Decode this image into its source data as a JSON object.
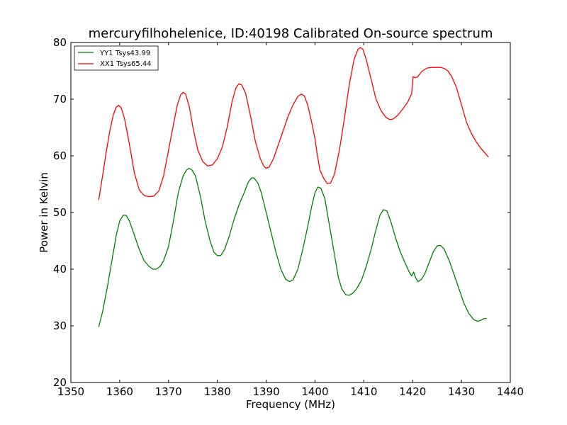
{
  "chart_data": {
    "type": "line",
    "title": "mercuryfilhohelenice, ID:40198 Calibrated On-source spectrum",
    "xlabel": "Frequency (MHz)",
    "ylabel": "Power in Kelvin",
    "xlim": [
      1350,
      1440
    ],
    "ylim": [
      20,
      80
    ],
    "xticks": [
      1350,
      1360,
      1370,
      1380,
      1390,
      1400,
      1410,
      1420,
      1430,
      1440
    ],
    "yticks": [
      20,
      30,
      40,
      50,
      60,
      70,
      80
    ],
    "grid": false,
    "legend_position": "top-left",
    "series": [
      {
        "name": "YY1 Tsys43.99",
        "color": "#008000",
        "points": [
          [
            1355.7,
            29.8
          ],
          [
            1356.5,
            32.5
          ],
          [
            1357.5,
            37.0
          ],
          [
            1358.5,
            42.0
          ],
          [
            1359.3,
            46.0
          ],
          [
            1360.0,
            48.5
          ],
          [
            1360.7,
            49.5
          ],
          [
            1361.3,
            49.5
          ],
          [
            1362.0,
            48.5
          ],
          [
            1363.0,
            46.0
          ],
          [
            1364.0,
            43.5
          ],
          [
            1365.0,
            41.5
          ],
          [
            1366.0,
            40.5
          ],
          [
            1366.8,
            40.0
          ],
          [
            1367.5,
            40.0
          ],
          [
            1368.3,
            40.5
          ],
          [
            1369.0,
            41.5
          ],
          [
            1370.0,
            44.0
          ],
          [
            1371.0,
            48.5
          ],
          [
            1372.0,
            53.5
          ],
          [
            1373.0,
            56.5
          ],
          [
            1373.7,
            57.5
          ],
          [
            1374.2,
            57.8
          ],
          [
            1374.8,
            57.5
          ],
          [
            1375.5,
            56.5
          ],
          [
            1376.5,
            53.0
          ],
          [
            1377.5,
            48.5
          ],
          [
            1378.5,
            45.0
          ],
          [
            1379.3,
            43.0
          ],
          [
            1380.0,
            42.4
          ],
          [
            1380.7,
            42.4
          ],
          [
            1381.5,
            43.5
          ],
          [
            1382.5,
            46.0
          ],
          [
            1383.5,
            49.0
          ],
          [
            1384.5,
            51.5
          ],
          [
            1385.5,
            53.5
          ],
          [
            1386.3,
            55.3
          ],
          [
            1387.0,
            56.1
          ],
          [
            1387.5,
            56.1
          ],
          [
            1388.3,
            55.2
          ],
          [
            1389.0,
            53.5
          ],
          [
            1390.0,
            50.0
          ],
          [
            1391.0,
            46.5
          ],
          [
            1392.0,
            43.0
          ],
          [
            1393.0,
            40.0
          ],
          [
            1394.0,
            38.2
          ],
          [
            1394.8,
            37.8
          ],
          [
            1395.5,
            38.1
          ],
          [
            1396.5,
            40.0
          ],
          [
            1397.5,
            43.5
          ],
          [
            1398.5,
            47.5
          ],
          [
            1399.3,
            51.0
          ],
          [
            1400.0,
            53.5
          ],
          [
            1400.6,
            54.5
          ],
          [
            1401.2,
            54.3
          ],
          [
            1402.0,
            52.5
          ],
          [
            1403.0,
            47.5
          ],
          [
            1404.0,
            42.5
          ],
          [
            1404.8,
            38.5
          ],
          [
            1405.5,
            36.5
          ],
          [
            1406.3,
            35.5
          ],
          [
            1407.0,
            35.4
          ],
          [
            1407.8,
            35.8
          ],
          [
            1408.5,
            36.5
          ],
          [
            1409.5,
            38.0
          ],
          [
            1410.5,
            40.5
          ],
          [
            1411.5,
            43.5
          ],
          [
            1412.5,
            47.0
          ],
          [
            1413.3,
            49.5
          ],
          [
            1414.0,
            50.5
          ],
          [
            1414.7,
            50.3
          ],
          [
            1415.5,
            48.5
          ],
          [
            1416.5,
            45.5
          ],
          [
            1417.5,
            43.0
          ],
          [
            1418.5,
            41.0
          ],
          [
            1419.3,
            39.5
          ],
          [
            1419.8,
            38.8
          ],
          [
            1420.2,
            39.5
          ],
          [
            1420.6,
            38.5
          ],
          [
            1421.1,
            37.8
          ],
          [
            1421.8,
            38.2
          ],
          [
            1422.5,
            39.2
          ],
          [
            1423.3,
            41.0
          ],
          [
            1424.2,
            43.0
          ],
          [
            1425.0,
            44.1
          ],
          [
            1425.7,
            44.2
          ],
          [
            1426.4,
            43.6
          ],
          [
            1427.5,
            41.5
          ],
          [
            1428.5,
            39.0
          ],
          [
            1429.5,
            36.5
          ],
          [
            1430.5,
            34.0
          ],
          [
            1431.5,
            32.2
          ],
          [
            1432.5,
            31.1
          ],
          [
            1433.3,
            30.8
          ],
          [
            1434.0,
            31.0
          ],
          [
            1434.7,
            31.3
          ],
          [
            1435.2,
            31.3
          ]
        ]
      },
      {
        "name": "XX1 Tsys65.44",
        "color": "#ff0000",
        "points": [
          [
            1355.7,
            52.2
          ],
          [
            1356.5,
            56.5
          ],
          [
            1357.3,
            61.0
          ],
          [
            1358.0,
            64.5
          ],
          [
            1358.7,
            67.3
          ],
          [
            1359.3,
            68.6
          ],
          [
            1359.8,
            68.9
          ],
          [
            1360.3,
            68.5
          ],
          [
            1361.0,
            66.5
          ],
          [
            1362.0,
            62.0
          ],
          [
            1363.0,
            57.0
          ],
          [
            1364.0,
            54.0
          ],
          [
            1365.0,
            53.0
          ],
          [
            1366.0,
            52.8
          ],
          [
            1367.0,
            52.9
          ],
          [
            1368.0,
            53.8
          ],
          [
            1369.0,
            56.5
          ],
          [
            1370.0,
            61.0
          ],
          [
            1371.0,
            65.5
          ],
          [
            1371.8,
            69.0
          ],
          [
            1372.5,
            70.8
          ],
          [
            1373.0,
            71.2
          ],
          [
            1373.5,
            70.9
          ],
          [
            1374.3,
            68.5
          ],
          [
            1375.0,
            65.0
          ],
          [
            1376.0,
            61.0
          ],
          [
            1377.0,
            59.0
          ],
          [
            1378.0,
            58.2
          ],
          [
            1379.0,
            58.4
          ],
          [
            1380.0,
            59.5
          ],
          [
            1381.0,
            61.5
          ],
          [
            1382.0,
            65.0
          ],
          [
            1383.0,
            69.5
          ],
          [
            1383.8,
            72.0
          ],
          [
            1384.4,
            72.7
          ],
          [
            1385.0,
            72.5
          ],
          [
            1385.8,
            71.0
          ],
          [
            1386.8,
            67.0
          ],
          [
            1387.8,
            62.5
          ],
          [
            1388.8,
            59.5
          ],
          [
            1389.5,
            58.2
          ],
          [
            1390.0,
            57.8
          ],
          [
            1390.6,
            58.0
          ],
          [
            1391.5,
            59.5
          ],
          [
            1392.5,
            62.0
          ],
          [
            1393.5,
            64.5
          ],
          [
            1394.5,
            67.0
          ],
          [
            1395.5,
            69.0
          ],
          [
            1396.5,
            70.5
          ],
          [
            1397.2,
            70.9
          ],
          [
            1397.8,
            70.6
          ],
          [
            1398.5,
            69.0
          ],
          [
            1399.3,
            66.0
          ],
          [
            1400.0,
            63.0
          ],
          [
            1400.5,
            60.0
          ],
          [
            1401.0,
            57.5
          ],
          [
            1401.8,
            56.0
          ],
          [
            1402.5,
            55.1
          ],
          [
            1403.2,
            55.2
          ],
          [
            1404.0,
            56.8
          ],
          [
            1405.0,
            61.0
          ],
          [
            1406.0,
            66.5
          ],
          [
            1407.0,
            72.5
          ],
          [
            1408.0,
            77.0
          ],
          [
            1408.8,
            78.8
          ],
          [
            1409.3,
            79.1
          ],
          [
            1409.8,
            78.8
          ],
          [
            1410.5,
            77.0
          ],
          [
            1411.5,
            73.5
          ],
          [
            1412.5,
            70.0
          ],
          [
            1413.5,
            68.0
          ],
          [
            1414.5,
            66.8
          ],
          [
            1415.3,
            66.4
          ],
          [
            1416.0,
            66.5
          ],
          [
            1417.0,
            67.2
          ],
          [
            1418.0,
            68.3
          ],
          [
            1419.0,
            69.5
          ],
          [
            1419.8,
            71.0
          ],
          [
            1420.1,
            74.0
          ],
          [
            1420.5,
            73.8
          ],
          [
            1421.0,
            73.9
          ],
          [
            1421.5,
            74.5
          ],
          [
            1422.0,
            75.0
          ],
          [
            1423.0,
            75.5
          ],
          [
            1424.0,
            75.6
          ],
          [
            1425.0,
            75.6
          ],
          [
            1425.8,
            75.6
          ],
          [
            1426.5,
            75.4
          ],
          [
            1427.2,
            75.0
          ],
          [
            1428.0,
            74.0
          ],
          [
            1429.0,
            72.0
          ],
          [
            1430.0,
            69.0
          ],
          [
            1431.0,
            66.0
          ],
          [
            1432.0,
            64.0
          ],
          [
            1433.0,
            62.5
          ],
          [
            1434.0,
            61.3
          ],
          [
            1435.0,
            60.3
          ],
          [
            1435.5,
            59.8
          ]
        ]
      }
    ]
  }
}
